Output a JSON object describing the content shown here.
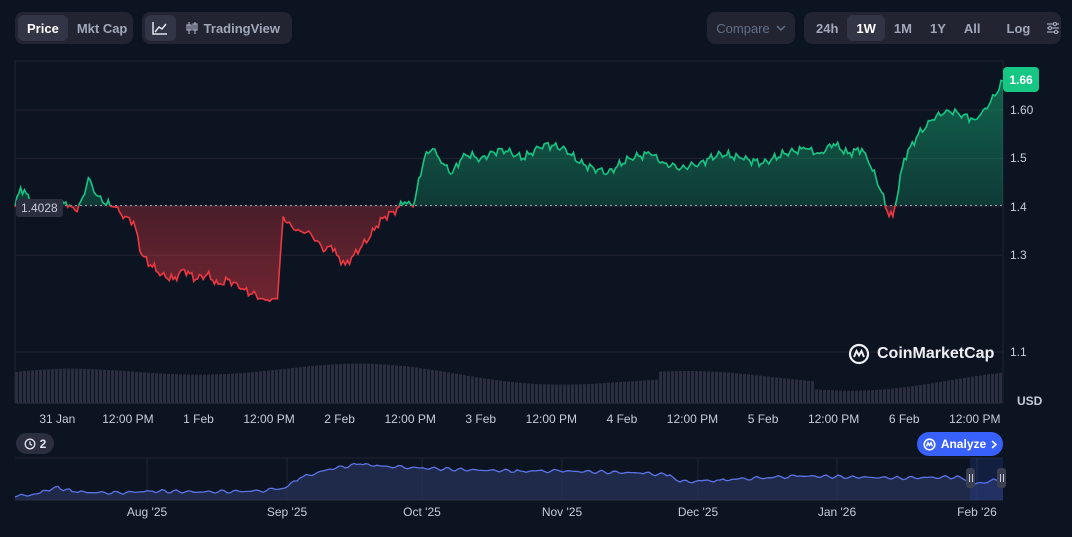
{
  "toolbar": {
    "price_label": "Price",
    "mktcap_label": "Mkt Cap",
    "tradingview_label": "TradingView",
    "compare_label": "Compare",
    "ranges": [
      "24h",
      "1W",
      "1M",
      "1Y",
      "All"
    ],
    "active_range": "1W",
    "log_label": "Log"
  },
  "current_price_label": "1.66",
  "baseline_label": "1.4028",
  "logo_text": "CoinMarketCap",
  "currency_label": "USD",
  "events_count": "2",
  "analyze_label": "Analyze",
  "colors": {
    "up": "#16c784",
    "down": "#ea3943",
    "accent": "#3861fb",
    "background": "#0d1421"
  },
  "chart_data": {
    "type": "line",
    "baseline": 1.4028,
    "current": 1.66,
    "ylim": [
      1.05,
      1.7
    ],
    "yticks": [
      1.1,
      1.3,
      1.4,
      1.5,
      1.6
    ],
    "ytick_labels": [
      "1.1",
      "1.3",
      "1.4",
      "1.5",
      "1.60"
    ],
    "xlim": [
      0,
      7
    ],
    "xticks": [
      {
        "label": "31 Jan",
        "t": 0.3
      },
      {
        "label": "12:00 PM",
        "t": 0.8
      },
      {
        "label": "1 Feb",
        "t": 1.3
      },
      {
        "label": "12:00 PM",
        "t": 1.8
      },
      {
        "label": "2 Feb",
        "t": 2.3
      },
      {
        "label": "12:00 PM",
        "t": 2.8
      },
      {
        "label": "3 Feb",
        "t": 3.3
      },
      {
        "label": "12:00 PM",
        "t": 3.8
      },
      {
        "label": "4 Feb",
        "t": 4.3
      },
      {
        "label": "12:00 PM",
        "t": 4.8
      },
      {
        "label": "5 Feb",
        "t": 5.3
      },
      {
        "label": "12:00 PM",
        "t": 5.8
      },
      {
        "label": "6 Feb",
        "t": 6.3
      },
      {
        "label": "12:00 PM",
        "t": 6.8
      }
    ],
    "series": [
      {
        "t": [
          0,
          0.04,
          0.12,
          0.16,
          0.2,
          0.24,
          0.28,
          0.32,
          0.36,
          0.4,
          0.44,
          0.48,
          0.52,
          0.56,
          0.62,
          0.7,
          0.78,
          0.84,
          0.9,
          0.96,
          1.04,
          1.12,
          1.2,
          1.28,
          1.36,
          1.44,
          1.52,
          1.6,
          1.68,
          1.76,
          1.82,
          1.86,
          1.9,
          1.96,
          2.02,
          2.08,
          2.14,
          2.2,
          2.24,
          2.28,
          2.34,
          2.4,
          2.46,
          2.52,
          2.56,
          2.62,
          2.68,
          2.72,
          2.76,
          2.82,
          2.9,
          2.96,
          3.02,
          3.1,
          3.18,
          3.3,
          3.45,
          3.6,
          3.75,
          3.9,
          4.0,
          4.1,
          4.2,
          4.35,
          4.5,
          4.6,
          4.72,
          4.85,
          5.0,
          5.15,
          5.3,
          5.45,
          5.6,
          5.7,
          5.8,
          5.9,
          6.0,
          6.05,
          6.1,
          6.14,
          6.18,
          6.22,
          6.3,
          6.4,
          6.5,
          6.6,
          6.72,
          6.8,
          6.86,
          6.9,
          7.0
        ],
        "price": [
          1.4,
          1.44,
          1.41,
          1.4,
          1.4,
          1.4,
          1.4,
          1.4,
          1.41,
          1.4,
          1.39,
          1.42,
          1.46,
          1.43,
          1.41,
          1.4,
          1.38,
          1.37,
          1.3,
          1.28,
          1.26,
          1.25,
          1.27,
          1.25,
          1.26,
          1.24,
          1.25,
          1.23,
          1.22,
          1.21,
          1.21,
          1.21,
          1.38,
          1.36,
          1.35,
          1.35,
          1.33,
          1.31,
          1.32,
          1.3,
          1.28,
          1.3,
          1.32,
          1.34,
          1.36,
          1.38,
          1.39,
          1.4,
          1.41,
          1.4,
          1.5,
          1.52,
          1.49,
          1.47,
          1.51,
          1.5,
          1.52,
          1.5,
          1.53,
          1.52,
          1.49,
          1.48,
          1.47,
          1.5,
          1.51,
          1.49,
          1.48,
          1.49,
          1.51,
          1.5,
          1.49,
          1.51,
          1.52,
          1.51,
          1.53,
          1.51,
          1.52,
          1.49,
          1.46,
          1.43,
          1.39,
          1.38,
          1.5,
          1.55,
          1.58,
          1.6,
          1.59,
          1.58,
          1.6,
          1.61,
          1.66
        ]
      }
    ],
    "navigator": {
      "xticks": [
        "Aug '25",
        "Sep '25",
        "Oct '25",
        "Nov '25",
        "Dec '25",
        "Jan '26",
        "Feb '26"
      ]
    }
  }
}
